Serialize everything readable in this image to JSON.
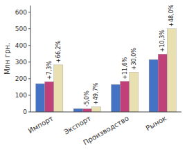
{
  "chart_data": {
    "type": "bar",
    "categories": [
      "Импорт",
      "Экспорт",
      "Производство",
      "Рынок"
    ],
    "series": [
      {
        "color": "#4472c4",
        "values": [
          170,
          20,
          165,
          315
        ]
      },
      {
        "color": "#c0417a",
        "values": [
          182,
          19,
          184,
          348
        ],
        "annotations": [
          "+7,3%",
          "-5,0%",
          "+11,6%",
          "+10,3%"
        ]
      },
      {
        "color": "#e8e0b0",
        "values": [
          283,
          30,
          240,
          500
        ],
        "annotations": [
          "+66,2%",
          "+49,7%",
          "+30,0%",
          "+48,0%"
        ]
      }
    ],
    "y_label": "Млн грн.",
    "ylim": [
      0,
      640
    ],
    "yticks": [
      0,
      100,
      200,
      300,
      400,
      500,
      600
    ],
    "grid": false
  }
}
